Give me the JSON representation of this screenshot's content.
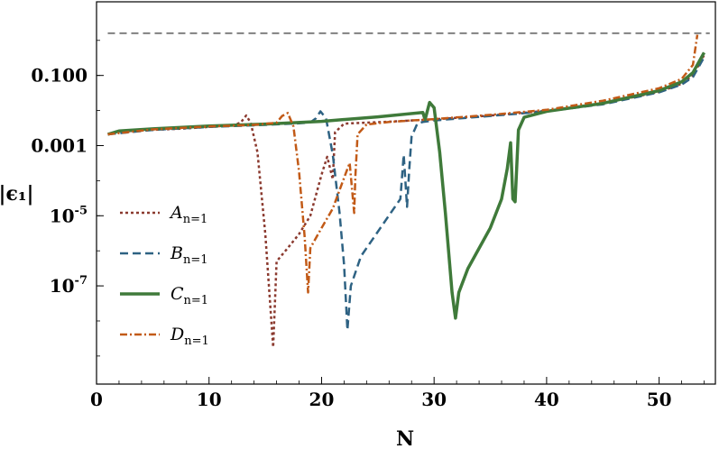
{
  "chart_data": {
    "type": "line",
    "xlabel": "N",
    "ylabel": "|ϵ₁|",
    "xlim": [
      0,
      55
    ],
    "ylim_log10": [
      -9.8,
      1.1
    ],
    "log_scale_y": true,
    "grid": false,
    "legend_position": "left-center",
    "reference_line": {
      "y": 1.6,
      "style": "dashed",
      "color": "#808080"
    },
    "x_ticks": [
      {
        "label": "0",
        "value": 0
      },
      {
        "label": "10",
        "value": 10
      },
      {
        "label": "20",
        "value": 20
      },
      {
        "label": "30",
        "value": 30
      },
      {
        "label": "40",
        "value": 40
      },
      {
        "label": "50",
        "value": 50
      }
    ],
    "y_ticks": [
      {
        "base": "0.100",
        "exp": "",
        "value": 0.1
      },
      {
        "base": "0.001",
        "exp": "",
        "value": 0.001
      },
      {
        "base": "10",
        "exp": "-5",
        "value": 1e-05
      },
      {
        "base": "10",
        "exp": "-7",
        "value": 1e-07
      }
    ],
    "series": [
      {
        "name": "A",
        "subscript": "n=1",
        "color": "#8b3a2f",
        "dash": "3,3",
        "width": 2.5,
        "points": [
          [
            1,
            0.0021
          ],
          [
            2,
            0.0025
          ],
          [
            4,
            0.0027
          ],
          [
            6,
            0.0029
          ],
          [
            8,
            0.0031
          ],
          [
            10,
            0.0034
          ],
          [
            12,
            0.0037
          ],
          [
            12.8,
            0.0045
          ],
          [
            13.3,
            0.0072
          ],
          [
            13.7,
            0.0045
          ],
          [
            14.3,
            0.00065
          ],
          [
            15,
            3e-06
          ],
          [
            15.7,
            1.8e-09
          ],
          [
            16,
            5e-07
          ],
          [
            17,
            1.2e-06
          ],
          [
            18,
            3e-06
          ],
          [
            19,
            1e-05
          ],
          [
            20,
            0.00015
          ],
          [
            20.5,
            0.00048
          ],
          [
            21,
            0.00011
          ],
          [
            21.2,
            0.0024
          ],
          [
            22,
            0.0042
          ],
          [
            23,
            0.0044
          ],
          [
            26,
            0.0048
          ],
          [
            28,
            0.0052
          ],
          [
            30,
            0.0056
          ],
          [
            35,
            0.0072
          ],
          [
            40,
            0.0098
          ],
          [
            45,
            0.016
          ],
          [
            50,
            0.034
          ],
          [
            52,
            0.058
          ],
          [
            53,
            0.1
          ],
          [
            54,
            0.38
          ]
        ]
      },
      {
        "name": "B",
        "subscript": "n=1",
        "color": "#2e6283",
        "dash": "9,5",
        "width": 2.5,
        "points": [
          [
            1,
            0.0021
          ],
          [
            5,
            0.0028
          ],
          [
            10,
            0.0034
          ],
          [
            15,
            0.0039
          ],
          [
            18,
            0.0043
          ],
          [
            19,
            0.0046
          ],
          [
            19.5,
            0.006
          ],
          [
            19.9,
            0.0095
          ],
          [
            20.4,
            0.006
          ],
          [
            21,
            0.00055
          ],
          [
            21.6,
            1.2e-05
          ],
          [
            22,
            4e-07
          ],
          [
            22.3,
            5.5e-09
          ],
          [
            22.6,
            1e-07
          ],
          [
            23.5,
            7e-07
          ],
          [
            25,
            3.5e-06
          ],
          [
            27,
            3e-05
          ],
          [
            27.3,
            0.00055
          ],
          [
            27.6,
            1.8e-05
          ],
          [
            27.8,
            0.00022
          ],
          [
            28,
            0.0018
          ],
          [
            28.5,
            0.0042
          ],
          [
            29,
            0.0047
          ],
          [
            30,
            0.0052
          ],
          [
            35,
            0.007
          ],
          [
            40,
            0.0095
          ],
          [
            45,
            0.015
          ],
          [
            50,
            0.033
          ],
          [
            52,
            0.055
          ],
          [
            53,
            0.09
          ],
          [
            54,
            0.33
          ]
        ]
      },
      {
        "name": "C",
        "subscript": "n=1",
        "color": "#3f7a3a",
        "dash": "",
        "width": 3.5,
        "points": [
          [
            1,
            0.0021
          ],
          [
            2,
            0.0026
          ],
          [
            5,
            0.003
          ],
          [
            10,
            0.0036
          ],
          [
            15,
            0.0041
          ],
          [
            20,
            0.0049
          ],
          [
            25,
            0.0066
          ],
          [
            29,
            0.0088
          ],
          [
            29.2,
            0.0055
          ],
          [
            29.6,
            0.017
          ],
          [
            30,
            0.012
          ],
          [
            30.5,
            0.00065
          ],
          [
            31,
            1.2e-05
          ],
          [
            31.6,
            6.5e-08
          ],
          [
            31.9,
            1.2e-08
          ],
          [
            32.2,
            6.5e-08
          ],
          [
            33,
            3.1e-07
          ],
          [
            35,
            4.5e-06
          ],
          [
            36,
            3e-05
          ],
          [
            36.5,
            0.00022
          ],
          [
            36.8,
            0.0012
          ],
          [
            37,
            3e-05
          ],
          [
            37.2,
            2.5e-05
          ],
          [
            37.5,
            0.0028
          ],
          [
            38,
            0.0064
          ],
          [
            40,
            0.0095
          ],
          [
            45,
            0.016
          ],
          [
            50,
            0.037
          ],
          [
            52,
            0.066
          ],
          [
            53,
            0.12
          ],
          [
            54,
            0.45
          ]
        ]
      },
      {
        "name": "D",
        "subscript": "n=1",
        "color": "#c25a17",
        "dash": "8,3,2,3",
        "width": 2.5,
        "points": [
          [
            1,
            0.0021
          ],
          [
            5,
            0.0029
          ],
          [
            10,
            0.0035
          ],
          [
            14,
            0.0039
          ],
          [
            16,
            0.0045
          ],
          [
            16.5,
            0.007
          ],
          [
            17,
            0.0085
          ],
          [
            17.5,
            0.0035
          ],
          [
            18,
            0.00018
          ],
          [
            18.5,
            2.5e-06
          ],
          [
            18.8,
            6.5e-08
          ],
          [
            19,
            1.2e-06
          ],
          [
            20,
            4.5e-06
          ],
          [
            21,
            1.6e-05
          ],
          [
            22,
            0.00012
          ],
          [
            22.5,
            0.00032
          ],
          [
            22.9,
            1.2e-05
          ],
          [
            23,
            0.00013
          ],
          [
            23.2,
            0.0021
          ],
          [
            24,
            0.004
          ],
          [
            26,
            0.0047
          ],
          [
            28,
            0.0052
          ],
          [
            30,
            0.0057
          ],
          [
            35,
            0.0075
          ],
          [
            40,
            0.0105
          ],
          [
            45,
            0.019
          ],
          [
            50,
            0.043
          ],
          [
            52,
            0.08
          ],
          [
            53,
            0.2
          ],
          [
            53.4,
            1.45
          ]
        ]
      }
    ]
  }
}
